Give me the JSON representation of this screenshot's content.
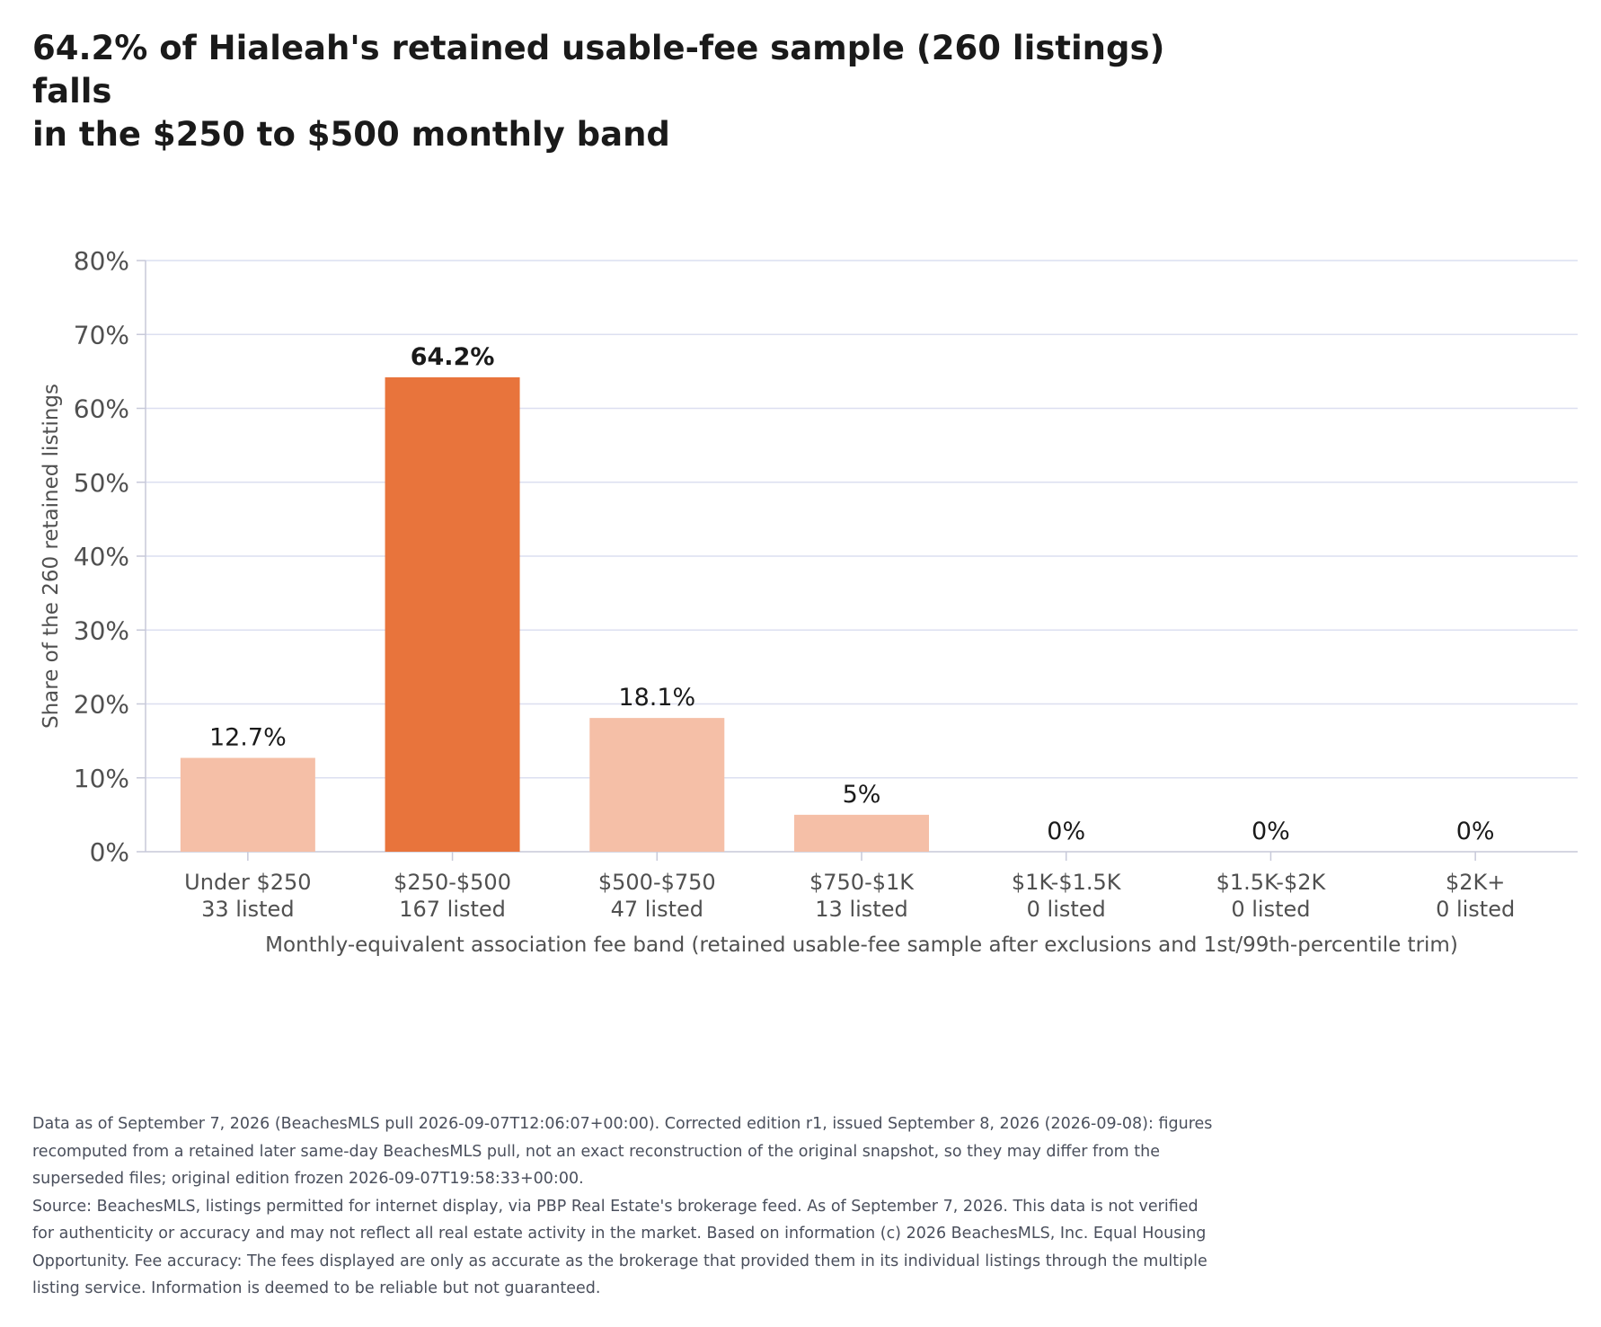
{
  "title_lines": [
    "64.2% of Hialeah's retained usable-fee sample (260 listings) falls",
    "in the $250 to $500 monthly band"
  ],
  "colors": {
    "highlight": "#e8743c",
    "bar": "#f5bfa7",
    "grid": "#dcdff0",
    "axis": "#c7c9d9",
    "text": "#1a1a1a",
    "tick_text": "#505050",
    "notes_text": "#4a4f5c"
  },
  "chart_data": {
    "type": "bar",
    "categories": [
      "Under $250",
      "$250-$500",
      "$500-$750",
      "$750-$1K",
      "$1K-$1.5K",
      "$1.5K-$2K",
      "$2K+"
    ],
    "counts": [
      "33 listed",
      "167 listed",
      "47 listed",
      "13 listed",
      "0 listed",
      "0 listed",
      "0 listed"
    ],
    "values": [
      12.7,
      64.2,
      18.1,
      5,
      0,
      0,
      0
    ],
    "value_labels": [
      "12.7%",
      "64.2%",
      "18.1%",
      "5%",
      "0%",
      "0%",
      "0%"
    ],
    "highlight_index": 1,
    "ylim": [
      0,
      80
    ],
    "yticks": [
      0,
      10,
      20,
      30,
      40,
      50,
      60,
      70,
      80
    ],
    "ytick_labels": [
      "0%",
      "10%",
      "20%",
      "30%",
      "40%",
      "50%",
      "60%",
      "70%",
      "80%"
    ],
    "ylabel": "Share of the 260 retained listings",
    "xlabel": "Monthly-equivalent association fee band (retained usable-fee sample after exclusions and 1st/99th-percentile trim)",
    "grid": true
  },
  "notes": [
    "Data as of September 7, 2026 (BeachesMLS pull 2026-09-07T12:06:07+00:00). Corrected edition r1, issued September 8, 2026 (2026-09-08): figures",
    "recomputed from a retained later same-day BeachesMLS pull, not an exact reconstruction of the original snapshot, so they may differ from the",
    "superseded files; original edition frozen 2026-09-07T19:58:33+00:00.",
    "Source: BeachesMLS, listings permitted for internet display, via PBP Real Estate's brokerage feed. As of September 7, 2026. This data is not verified",
    "for authenticity or accuracy and may not reflect all real estate activity in the market. Based on information (c) 2026 BeachesMLS, Inc. Equal Housing",
    "Opportunity. Fee accuracy: The fees displayed are only as accurate as the brokerage that provided them in its individual listings through the multiple",
    "listing service. Information is deemed to be reliable but not guaranteed."
  ]
}
